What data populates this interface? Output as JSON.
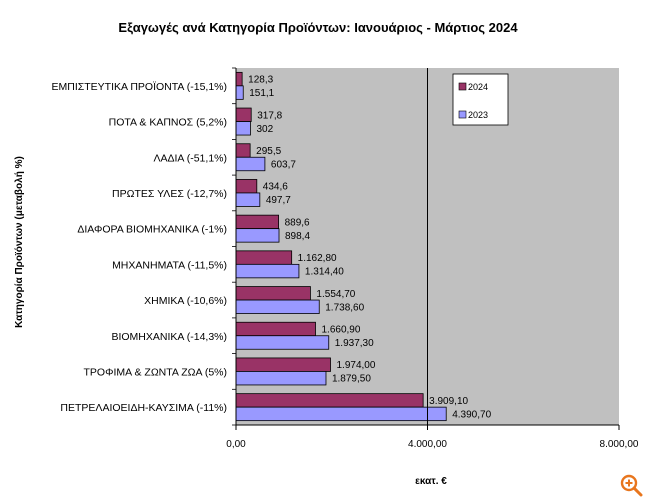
{
  "chart_data": {
    "type": "bar",
    "orientation": "horizontal",
    "title": "Εξαγωγές ανά Κατηγορία Προϊόντων: Ιανουάριος - Μάρτιος 2024",
    "xlabel": "εκατ. €",
    "ylabel": "Κατηγορία Προϊόντων (μεταβολή %)",
    "xlim": [
      0,
      8000
    ],
    "x_ticks": [
      "0,00",
      "4.000,00",
      "8.000,00"
    ],
    "x_tick_values": [
      0,
      4000,
      8000
    ],
    "grid": false,
    "legend_position": "top-right",
    "categories": [
      "ΕΜΠΙΣΤΕΥΤΙΚΑ ΠΡΟΪΟΝΤΑ (-15,1%)",
      "ΠΟΤΑ & ΚΑΠΝΟΣ (5,2%)",
      "ΛΑΔΙΑ (-51,1%)",
      "ΠΡΩΤΕΣ ΥΛΕΣ (-12,7%)",
      "ΔΙΑΦΟΡΑ ΒΙΟΜΗΧΑΝΙΚΑ (-1%)",
      "ΜΗΧΑΝΗΜΑΤΑ (-11,5%)",
      "ΧΗΜΙΚΑ (-10,6%)",
      "ΒΙΟΜΗΧΑΝΙΚΑ (-14,3%)",
      "ΤΡΟΦΙΜΑ & ΖΩΝΤΑ ΖΩΑ (5%)",
      "ΠΕΤΡΕΛΑΙΟΕΙΔΗ-ΚΑΥΣΙΜΑ (-11%)"
    ],
    "series": [
      {
        "name": "2024",
        "color": "#993366",
        "values": [
          128.3,
          317.8,
          295.5,
          434.6,
          889.6,
          1162.8,
          1554.7,
          1660.9,
          1974.0,
          3909.1
        ],
        "labels": [
          "128,3",
          "317,8",
          "295,5",
          "434,6",
          "889,6",
          "1.162,80",
          "1.554,70",
          "1.660,90",
          "1.974,00",
          "3.909,10"
        ]
      },
      {
        "name": "2023",
        "color": "#9999ff",
        "values": [
          151.1,
          302,
          603.7,
          497.7,
          898.4,
          1314.4,
          1738.6,
          1937.3,
          1879.5,
          4390.7
        ],
        "labels": [
          "151,1",
          "302",
          "603,7",
          "497,7",
          "898,4",
          "1.314,40",
          "1.738,60",
          "1.937,30",
          "1.879,50",
          "4.390,70"
        ]
      }
    ]
  },
  "controls": {
    "zoom_icon": "zoom-in-icon",
    "zoom_color": "#e8761e"
  }
}
